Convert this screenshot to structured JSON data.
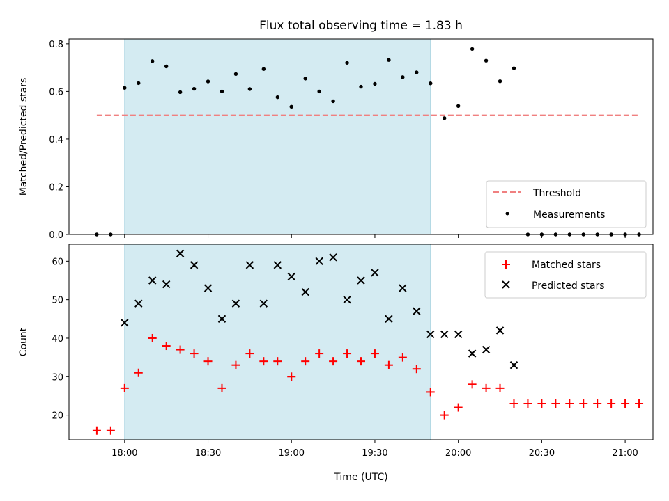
{
  "chart_data": [
    {
      "type": "scatter",
      "title": "Flux total observing time = 1.83 h",
      "xlabel": "",
      "ylabel": "Matched/Predicted stars",
      "ylim": [
        0,
        0.82
      ],
      "yticks": [
        "0.0",
        "0.2",
        "0.4",
        "0.6",
        "0.8"
      ],
      "ytick_values": [
        0,
        0.2,
        0.4,
        0.6,
        0.8
      ],
      "xlim": [
        "17:40",
        "21:10"
      ],
      "shaded_region": {
        "start": "18:00",
        "end": "19:50",
        "color": "#d4ebf2"
      },
      "legend": {
        "placement": "lower-right",
        "entries": [
          "Threshold",
          "Measurements"
        ]
      },
      "threshold": {
        "name": "Threshold",
        "value": 0.5,
        "x_start": "17:50",
        "x_end": "21:05",
        "color": "#f08080"
      },
      "series": [
        {
          "name": "Measurements",
          "color": "#000000",
          "x": [
            "17:50",
            "17:55",
            "18:00",
            "18:05",
            "18:10",
            "18:15",
            "18:20",
            "18:25",
            "18:30",
            "18:35",
            "18:40",
            "18:45",
            "18:50",
            "18:55",
            "19:00",
            "19:05",
            "19:10",
            "19:15",
            "19:20",
            "19:25",
            "19:30",
            "19:35",
            "19:40",
            "19:45",
            "19:50",
            "19:55",
            "20:00",
            "20:05",
            "20:10",
            "20:15",
            "20:20",
            "20:25",
            "20:30",
            "20:35",
            "20:40",
            "20:45",
            "20:50",
            "20:55",
            "21:00",
            "21:05"
          ],
          "y": [
            0,
            0,
            0.615,
            0.635,
            0.727,
            0.705,
            0.597,
            0.611,
            0.642,
            0.6,
            0.673,
            0.61,
            0.694,
            0.576,
            0.536,
            0.654,
            0.6,
            0.559,
            0.72,
            0.62,
            0.632,
            0.732,
            0.66,
            0.68,
            0.634,
            0.488,
            0.539,
            0.778,
            0.729,
            0.643,
            0.697,
            0,
            0,
            0,
            0,
            0,
            0,
            0,
            0,
            0
          ]
        }
      ]
    },
    {
      "type": "scatter",
      "title": "",
      "xlabel": "Time (UTC)",
      "ylabel": "Count",
      "ylim": [
        13.6,
        64.4
      ],
      "yticks": [
        "20",
        "30",
        "40",
        "50",
        "60"
      ],
      "ytick_values": [
        20,
        30,
        40,
        50,
        60
      ],
      "xlim": [
        "17:40",
        "21:10"
      ],
      "xticks": [
        "18:00",
        "18:30",
        "19:00",
        "19:30",
        "20:00",
        "20:30",
        "21:00"
      ],
      "shaded_region": {
        "start": "18:00",
        "end": "19:50",
        "color": "#d4ebf2"
      },
      "legend": {
        "placement": "upper-right",
        "entries": [
          "Matched stars",
          "Predicted stars"
        ]
      },
      "series": [
        {
          "name": "Matched stars",
          "marker": "plus",
          "color": "#ff0000",
          "x": [
            "17:50",
            "17:55",
            "18:00",
            "18:05",
            "18:10",
            "18:15",
            "18:20",
            "18:25",
            "18:30",
            "18:35",
            "18:40",
            "18:45",
            "18:50",
            "18:55",
            "19:00",
            "19:05",
            "19:10",
            "19:15",
            "19:20",
            "19:25",
            "19:30",
            "19:35",
            "19:40",
            "19:45",
            "19:50",
            "19:55",
            "20:00",
            "20:05",
            "20:10",
            "20:15",
            "20:20",
            "20:25",
            "20:30",
            "20:35",
            "20:40",
            "20:45",
            "20:50",
            "20:55",
            "21:00",
            "21:05"
          ],
          "y": [
            16,
            16,
            27,
            31,
            40,
            38,
            37,
            36,
            34,
            27,
            33,
            36,
            34,
            34,
            30,
            34,
            36,
            34,
            36,
            34,
            36,
            33,
            35,
            32,
            26,
            20,
            22,
            28,
            27,
            27,
            23,
            23,
            23,
            23,
            23,
            23,
            23,
            23,
            23,
            23
          ]
        },
        {
          "name": "Predicted stars",
          "marker": "x",
          "color": "#000000",
          "x": [
            "18:00",
            "18:05",
            "18:10",
            "18:15",
            "18:20",
            "18:25",
            "18:30",
            "18:35",
            "18:40",
            "18:45",
            "18:50",
            "18:55",
            "19:00",
            "19:05",
            "19:10",
            "19:15",
            "19:20",
            "19:25",
            "19:30",
            "19:35",
            "19:40",
            "19:45",
            "19:50",
            "19:55",
            "20:00",
            "20:05",
            "20:10",
            "20:15",
            "20:20"
          ],
          "y": [
            44,
            49,
            55,
            54,
            62,
            59,
            53,
            45,
            49,
            59,
            49,
            59,
            56,
            52,
            60,
            61,
            50,
            55,
            57,
            45,
            53,
            47,
            41,
            41,
            41,
            36,
            37,
            42,
            33
          ]
        }
      ]
    }
  ]
}
